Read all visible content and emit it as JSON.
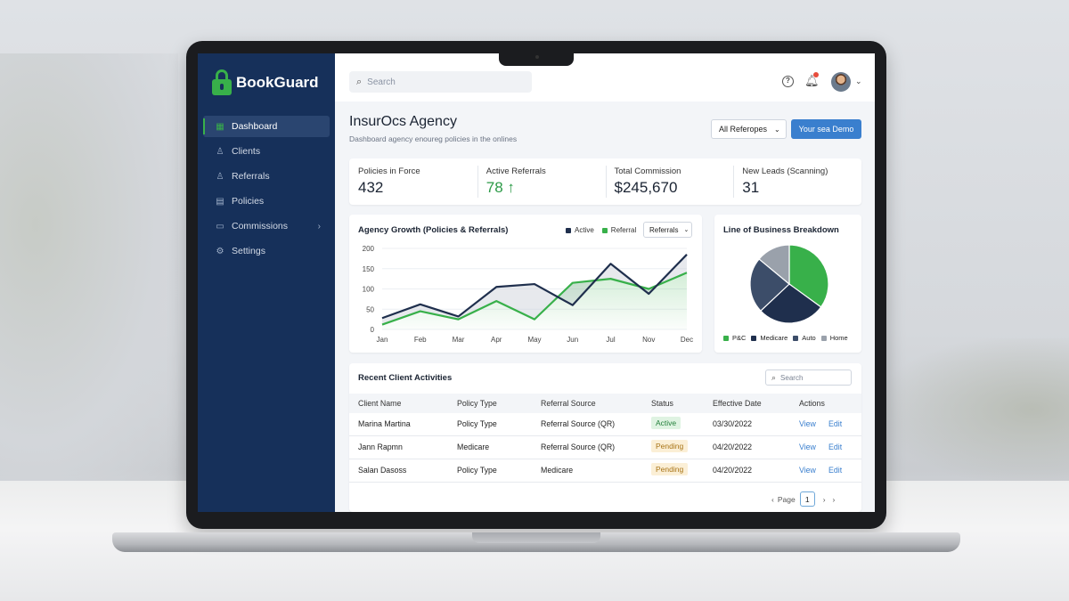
{
  "sidebar": {
    "brand": "BookGuard",
    "items": [
      {
        "label": "Dashboard",
        "icon": "grid-icon"
      },
      {
        "label": "Clients",
        "icon": "users-icon"
      },
      {
        "label": "Referrals",
        "icon": "user-share-icon"
      },
      {
        "label": "Policies",
        "icon": "document-icon"
      },
      {
        "label": "Commissions",
        "icon": "wallet-icon"
      },
      {
        "label": "Settings",
        "icon": "gear-icon"
      }
    ]
  },
  "topbar": {
    "search_placeholder": "Search"
  },
  "header": {
    "title": "InsurOcs Agency",
    "subtitle": "Dashboard agency enoureg policies in the onlines",
    "filter_label": "All Referopes",
    "demo_button": "Your sea Demo"
  },
  "kpis": [
    {
      "label": "Policies in Force",
      "value": "432"
    },
    {
      "label": "Active Referrals",
      "value": "78 ↑"
    },
    {
      "label": "Total Commission",
      "value": "$245,670"
    },
    {
      "label": "New Leads (Scanning)",
      "value": "31"
    }
  ],
  "growth_card": {
    "title": "Agency Growth (Policies & Referrals)",
    "legend_active": "Active",
    "legend_referral": "Referral",
    "select_label": "Referrals"
  },
  "pie_card": {
    "title": "Line of Business Breakdown"
  },
  "colors": {
    "navy": "#1f2f4d",
    "green": "#38b04a",
    "slate": "#3c4d69",
    "gray": "#9aa1ab",
    "accent": "#3a7fce"
  },
  "chart_data": [
    {
      "type": "line",
      "categories": [
        "Jan",
        "Feb",
        "Mar",
        "Apr",
        "May",
        "Jun",
        "Jul",
        "Nov",
        "Dec"
      ],
      "ylim": [
        0,
        200
      ],
      "yticks": [
        0,
        50,
        100,
        150,
        200
      ],
      "series": [
        {
          "name": "Active",
          "color": "#1f2f4d",
          "values": [
            28,
            62,
            32,
            105,
            112,
            60,
            162,
            88,
            185
          ]
        },
        {
          "name": "Referral",
          "color": "#38b04a",
          "values": [
            12,
            45,
            25,
            70,
            25,
            115,
            125,
            100,
            140
          ]
        }
      ]
    },
    {
      "type": "pie",
      "slices": [
        {
          "name": "P&C",
          "value": 35,
          "color": "#38b04a"
        },
        {
          "name": "Medicare",
          "value": 28,
          "color": "#1f2f4d"
        },
        {
          "name": "Auto",
          "value": 23,
          "color": "#3c4d69"
        },
        {
          "name": "Home",
          "value": 14,
          "color": "#9aa1ab"
        }
      ]
    }
  ],
  "table": {
    "title": "Recent Client Activities",
    "search_placeholder": "Search",
    "columns": [
      "Client Name",
      "Policy Type",
      "Referral Source",
      "Status",
      "Effective Date",
      "Actions"
    ],
    "rows": [
      {
        "client": "Marina Martina",
        "policy": "Policy Type",
        "source": "Referral Source (QR)",
        "status": "Active",
        "date": "03/30/2022",
        "view": "View",
        "edit": "Edit"
      },
      {
        "client": "Jann Rapmn",
        "policy": "Medicare",
        "source": "Referral Source (QR)",
        "status": "Pending",
        "date": "04/20/2022",
        "view": "View",
        "edit": "Edit"
      },
      {
        "client": "Salan Dasoss",
        "policy": "Policy Type",
        "source": "Medicare",
        "status": "Pending",
        "date": "04/20/2022",
        "view": "View",
        "edit": "Edit"
      }
    ],
    "pager_label": "Page",
    "page": "1"
  }
}
